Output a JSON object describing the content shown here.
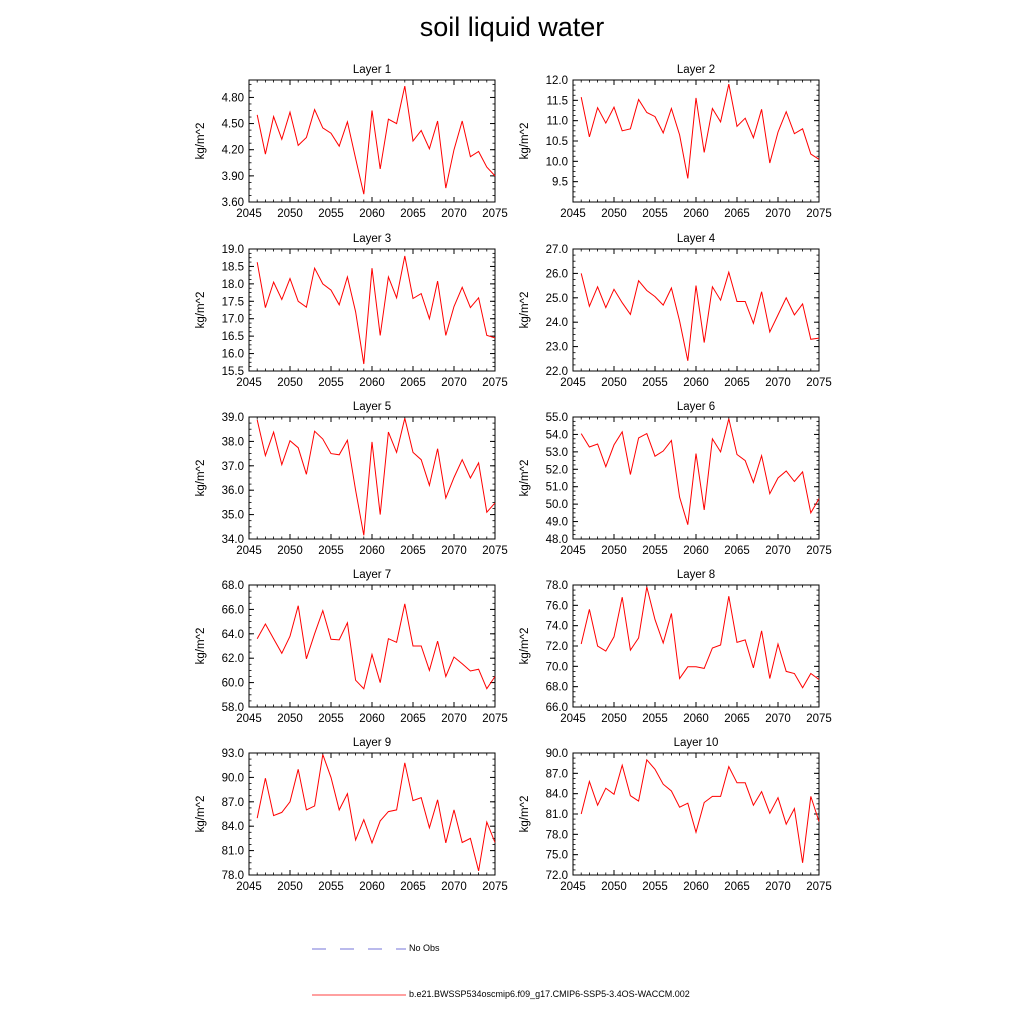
{
  "title": "soil liquid water",
  "colors": {
    "model": "#ff0000",
    "obs": "#4a4acc",
    "axis": "#000000"
  },
  "legend": {
    "obs_label": "No Obs",
    "model_label": "b.e21.BWSSP534oscmip6.f09_g17.CMIP6-SSP5-3.4OS-WACCM.002"
  },
  "chart_data": [
    {
      "type": "line",
      "title": "Layer 1",
      "xlabel": "",
      "ylabel": "kg/m^2",
      "xlim": [
        2045,
        2075
      ],
      "ylim": [
        3.6,
        5.0
      ],
      "xticks": [
        2045,
        2050,
        2055,
        2060,
        2065,
        2070,
        2075
      ],
      "xtick_labels": [
        "2045",
        "2050",
        "2055",
        "2060",
        "2065",
        "2070",
        "2075"
      ],
      "yticks": [
        3.6,
        3.9,
        4.2,
        4.5,
        4.8
      ],
      "ytick_labels": [
        "3.60",
        "3.90",
        "4.20",
        "4.50",
        "4.80"
      ],
      "x": [
        2046,
        2047,
        2048,
        2049,
        2050,
        2051,
        2052,
        2053,
        2054,
        2055,
        2056,
        2057,
        2058,
        2059,
        2060,
        2061,
        2062,
        2063,
        2064,
        2065,
        2066,
        2067,
        2068,
        2069,
        2070,
        2071,
        2072,
        2073,
        2074,
        2075
      ],
      "series": [
        {
          "values": [
            4.6,
            4.15,
            4.58,
            4.32,
            4.63,
            4.25,
            4.34,
            4.66,
            4.45,
            4.39,
            4.24,
            4.52,
            4.1,
            3.69,
            4.65,
            3.98,
            4.55,
            4.5,
            4.93,
            4.3,
            4.42,
            4.21,
            4.53,
            3.76,
            4.2,
            4.53,
            4.12,
            4.18,
            4.0,
            3.9
          ]
        }
      ]
    },
    {
      "type": "line",
      "title": "Layer 2",
      "xlabel": "",
      "ylabel": "kg/m^2",
      "xlim": [
        2045,
        2075
      ],
      "ylim": [
        9.0,
        12.0
      ],
      "xticks": [
        2045,
        2050,
        2055,
        2060,
        2065,
        2070,
        2075
      ],
      "xtick_labels": [
        "2045",
        "2050",
        "2055",
        "2060",
        "2065",
        "2070",
        "2075"
      ],
      "yticks": [
        9.5,
        10.0,
        10.5,
        11.0,
        11.5,
        12.0
      ],
      "ytick_labels": [
        "9.5",
        "10.0",
        "10.5",
        "11.0",
        "11.5",
        "12.0"
      ],
      "x": [
        2046,
        2047,
        2048,
        2049,
        2050,
        2051,
        2052,
        2053,
        2054,
        2055,
        2056,
        2057,
        2058,
        2059,
        2060,
        2061,
        2062,
        2063,
        2064,
        2065,
        2066,
        2067,
        2068,
        2069,
        2070,
        2071,
        2072,
        2073,
        2074,
        2075
      ],
      "series": [
        {
          "values": [
            11.58,
            10.6,
            11.32,
            10.94,
            11.33,
            10.75,
            10.8,
            11.52,
            11.2,
            11.1,
            10.7,
            11.3,
            10.65,
            9.58,
            11.56,
            10.22,
            11.3,
            10.97,
            11.9,
            10.86,
            11.06,
            10.58,
            11.28,
            9.96,
            10.72,
            11.22,
            10.68,
            10.8,
            10.18,
            10.05
          ]
        }
      ]
    },
    {
      "type": "line",
      "title": "Layer 3",
      "xlabel": "",
      "ylabel": "kg/m^2",
      "xlim": [
        2045,
        2075
      ],
      "ylim": [
        15.5,
        19.0
      ],
      "xticks": [
        2045,
        2050,
        2055,
        2060,
        2065,
        2070,
        2075
      ],
      "xtick_labels": [
        "2045",
        "2050",
        "2055",
        "2060",
        "2065",
        "2070",
        "2075"
      ],
      "yticks": [
        15.5,
        16.0,
        16.5,
        17.0,
        17.5,
        18.0,
        18.5,
        19.0
      ],
      "ytick_labels": [
        "15.5",
        "16.0",
        "16.5",
        "17.0",
        "17.5",
        "18.0",
        "18.5",
        "19.0"
      ],
      "x": [
        2046,
        2047,
        2048,
        2049,
        2050,
        2051,
        2052,
        2053,
        2054,
        2055,
        2056,
        2057,
        2058,
        2059,
        2060,
        2061,
        2062,
        2063,
        2064,
        2065,
        2066,
        2067,
        2068,
        2069,
        2070,
        2071,
        2072,
        2073,
        2074,
        2075
      ],
      "series": [
        {
          "values": [
            18.62,
            17.32,
            18.05,
            17.55,
            18.15,
            17.5,
            17.33,
            18.45,
            18.0,
            17.82,
            17.4,
            18.2,
            17.2,
            15.7,
            18.45,
            16.52,
            18.2,
            17.6,
            18.8,
            17.58,
            17.72,
            17.0,
            18.08,
            16.52,
            17.35,
            17.9,
            17.32,
            17.6,
            16.52,
            16.45
          ]
        }
      ]
    },
    {
      "type": "line",
      "title": "Layer 4",
      "xlabel": "",
      "ylabel": "kg/m^2",
      "xlim": [
        2045,
        2075
      ],
      "ylim": [
        22.0,
        27.0
      ],
      "xticks": [
        2045,
        2050,
        2055,
        2060,
        2065,
        2070,
        2075
      ],
      "xtick_labels": [
        "2045",
        "2050",
        "2055",
        "2060",
        "2065",
        "2070",
        "2075"
      ],
      "yticks": [
        22.0,
        23.0,
        24.0,
        25.0,
        26.0,
        27.0
      ],
      "ytick_labels": [
        "22.0",
        "23.0",
        "24.0",
        "25.0",
        "26.0",
        "27.0"
      ],
      "x": [
        2046,
        2047,
        2048,
        2049,
        2050,
        2051,
        2052,
        2053,
        2054,
        2055,
        2056,
        2057,
        2058,
        2059,
        2060,
        2061,
        2062,
        2063,
        2064,
        2065,
        2066,
        2067,
        2068,
        2069,
        2070,
        2071,
        2072,
        2073,
        2074,
        2075
      ],
      "series": [
        {
          "values": [
            26.0,
            24.65,
            25.45,
            24.6,
            25.35,
            24.8,
            24.32,
            25.7,
            25.3,
            25.05,
            24.7,
            25.4,
            24.05,
            22.42,
            25.5,
            23.17,
            25.45,
            24.9,
            26.05,
            24.85,
            24.85,
            23.95,
            25.25,
            23.6,
            24.3,
            25.0,
            24.3,
            24.75,
            23.3,
            23.35
          ]
        }
      ]
    },
    {
      "type": "line",
      "title": "Layer 5",
      "xlabel": "",
      "ylabel": "kg/m^2",
      "xlim": [
        2045,
        2075
      ],
      "ylim": [
        34.0,
        39.0
      ],
      "xticks": [
        2045,
        2050,
        2055,
        2060,
        2065,
        2070,
        2075
      ],
      "xtick_labels": [
        "2045",
        "2050",
        "2055",
        "2060",
        "2065",
        "2070",
        "2075"
      ],
      "yticks": [
        34.0,
        35.0,
        36.0,
        37.0,
        38.0,
        39.0
      ],
      "ytick_labels": [
        "34.0",
        "35.0",
        "36.0",
        "37.0",
        "38.0",
        "39.0"
      ],
      "x": [
        2046,
        2047,
        2048,
        2049,
        2050,
        2051,
        2052,
        2053,
        2054,
        2055,
        2056,
        2057,
        2058,
        2059,
        2060,
        2061,
        2062,
        2063,
        2064,
        2065,
        2066,
        2067,
        2068,
        2069,
        2070,
        2071,
        2072,
        2073,
        2074,
        2075
      ],
      "series": [
        {
          "values": [
            38.88,
            37.42,
            38.38,
            37.05,
            38.03,
            37.74,
            36.65,
            38.42,
            38.1,
            37.5,
            37.45,
            38.05,
            36.0,
            34.15,
            37.98,
            35.0,
            38.38,
            37.55,
            38.95,
            37.55,
            37.25,
            36.2,
            37.7,
            35.68,
            36.52,
            37.25,
            36.5,
            37.12,
            35.1,
            35.48
          ]
        }
      ]
    },
    {
      "type": "line",
      "title": "Layer 6",
      "xlabel": "",
      "ylabel": "kg/m^2",
      "xlim": [
        2045,
        2075
      ],
      "ylim": [
        48.0,
        55.0
      ],
      "xticks": [
        2045,
        2050,
        2055,
        2060,
        2065,
        2070,
        2075
      ],
      "xtick_labels": [
        "2045",
        "2050",
        "2055",
        "2060",
        "2065",
        "2070",
        "2075"
      ],
      "yticks": [
        48.0,
        49.0,
        50.0,
        51.0,
        52.0,
        53.0,
        54.0,
        55.0
      ],
      "ytick_labels": [
        "48.0",
        "49.0",
        "50.0",
        "51.0",
        "52.0",
        "53.0",
        "54.0",
        "55.0"
      ],
      "x": [
        2046,
        2047,
        2048,
        2049,
        2050,
        2051,
        2052,
        2053,
        2054,
        2055,
        2056,
        2057,
        2058,
        2059,
        2060,
        2061,
        2062,
        2063,
        2064,
        2065,
        2066,
        2067,
        2068,
        2069,
        2070,
        2071,
        2072,
        2073,
        2074,
        2075
      ],
      "series": [
        {
          "values": [
            54.05,
            53.28,
            53.45,
            52.15,
            53.4,
            54.15,
            51.7,
            53.8,
            54.05,
            52.75,
            53.05,
            53.65,
            50.4,
            48.82,
            52.9,
            49.67,
            53.75,
            53.0,
            54.9,
            52.85,
            52.5,
            51.25,
            52.78,
            50.6,
            51.5,
            51.9,
            51.3,
            51.85,
            49.5,
            50.32
          ]
        }
      ]
    },
    {
      "type": "line",
      "title": "Layer 7",
      "xlabel": "",
      "ylabel": "kg/m^2",
      "xlim": [
        2045,
        2075
      ],
      "ylim": [
        58.0,
        68.0
      ],
      "xticks": [
        2045,
        2050,
        2055,
        2060,
        2065,
        2070,
        2075
      ],
      "xtick_labels": [
        "2045",
        "2050",
        "2055",
        "2060",
        "2065",
        "2070",
        "2075"
      ],
      "yticks": [
        58.0,
        60.0,
        62.0,
        64.0,
        66.0,
        68.0
      ],
      "ytick_labels": [
        "58.0",
        "60.0",
        "62.0",
        "64.0",
        "66.0",
        "68.0"
      ],
      "x": [
        2046,
        2047,
        2048,
        2049,
        2050,
        2051,
        2052,
        2053,
        2054,
        2055,
        2056,
        2057,
        2058,
        2059,
        2060,
        2061,
        2062,
        2063,
        2064,
        2065,
        2066,
        2067,
        2068,
        2069,
        2070,
        2071,
        2072,
        2073,
        2074,
        2075
      ],
      "series": [
        {
          "values": [
            63.6,
            64.8,
            63.6,
            62.4,
            63.8,
            66.3,
            61.95,
            64.0,
            65.9,
            63.55,
            63.5,
            64.9,
            60.2,
            59.5,
            62.3,
            60.0,
            63.6,
            63.3,
            66.45,
            63.0,
            63.0,
            61.0,
            63.4,
            60.5,
            62.1,
            61.55,
            60.95,
            61.1,
            59.5,
            60.5
          ]
        }
      ]
    },
    {
      "type": "line",
      "title": "Layer 8",
      "xlabel": "",
      "ylabel": "kg/m^2",
      "xlim": [
        2045,
        2075
      ],
      "ylim": [
        66.0,
        78.0
      ],
      "xticks": [
        2045,
        2050,
        2055,
        2060,
        2065,
        2070,
        2075
      ],
      "xtick_labels": [
        "2045",
        "2050",
        "2055",
        "2060",
        "2065",
        "2070",
        "2075"
      ],
      "yticks": [
        66.0,
        68.0,
        70.0,
        72.0,
        74.0,
        76.0,
        78.0
      ],
      "ytick_labels": [
        "66.0",
        "68.0",
        "70.0",
        "72.0",
        "74.0",
        "76.0",
        "78.0"
      ],
      "x": [
        2046,
        2047,
        2048,
        2049,
        2050,
        2051,
        2052,
        2053,
        2054,
        2055,
        2056,
        2057,
        2058,
        2059,
        2060,
        2061,
        2062,
        2063,
        2064,
        2065,
        2066,
        2067,
        2068,
        2069,
        2070,
        2071,
        2072,
        2073,
        2074,
        2075
      ],
      "series": [
        {
          "values": [
            72.2,
            75.6,
            72.0,
            71.5,
            72.9,
            76.8,
            71.6,
            72.8,
            77.8,
            74.6,
            72.3,
            75.2,
            68.8,
            69.95,
            69.95,
            69.8,
            71.8,
            72.1,
            76.9,
            72.35,
            72.6,
            69.85,
            73.5,
            68.8,
            72.2,
            69.5,
            69.3,
            67.9,
            69.3,
            68.7
          ]
        }
      ]
    },
    {
      "type": "line",
      "title": "Layer 9",
      "xlabel": "",
      "ylabel": "kg/m^2",
      "xlim": [
        2045,
        2075
      ],
      "ylim": [
        78.0,
        93.0
      ],
      "xticks": [
        2045,
        2050,
        2055,
        2060,
        2065,
        2070,
        2075
      ],
      "xtick_labels": [
        "2045",
        "2050",
        "2055",
        "2060",
        "2065",
        "2070",
        "2075"
      ],
      "yticks": [
        78.0,
        81.0,
        84.0,
        87.0,
        90.0,
        93.0
      ],
      "ytick_labels": [
        "78.0",
        "81.0",
        "84.0",
        "87.0",
        "90.0",
        "93.0"
      ],
      "x": [
        2046,
        2047,
        2048,
        2049,
        2050,
        2051,
        2052,
        2053,
        2054,
        2055,
        2056,
        2057,
        2058,
        2059,
        2060,
        2061,
        2062,
        2063,
        2064,
        2065,
        2066,
        2067,
        2068,
        2069,
        2070,
        2071,
        2072,
        2073,
        2074,
        2075
      ],
      "series": [
        {
          "values": [
            85.0,
            89.9,
            85.3,
            85.7,
            87.0,
            91.0,
            86.0,
            86.5,
            92.8,
            90.0,
            86.0,
            88.0,
            82.3,
            84.8,
            81.95,
            84.65,
            85.8,
            86.0,
            91.8,
            87.15,
            87.5,
            83.8,
            87.25,
            81.95,
            86.0,
            82.0,
            82.5,
            78.5,
            84.5,
            82.0
          ]
        }
      ]
    },
    {
      "type": "line",
      "title": "Layer 10",
      "xlabel": "",
      "ylabel": "kg/m^2",
      "xlim": [
        2045,
        2075
      ],
      "ylim": [
        72.0,
        90.0
      ],
      "xticks": [
        2045,
        2050,
        2055,
        2060,
        2065,
        2070,
        2075
      ],
      "xtick_labels": [
        "2045",
        "2050",
        "2055",
        "2060",
        "2065",
        "2070",
        "2075"
      ],
      "yticks": [
        72.0,
        75.0,
        78.0,
        81.0,
        84.0,
        87.0,
        90.0
      ],
      "ytick_labels": [
        "72.0",
        "75.0",
        "78.0",
        "81.0",
        "84.0",
        "87.0",
        "90.0"
      ],
      "x": [
        2046,
        2047,
        2048,
        2049,
        2050,
        2051,
        2052,
        2053,
        2054,
        2055,
        2056,
        2057,
        2058,
        2059,
        2060,
        2061,
        2062,
        2063,
        2064,
        2065,
        2066,
        2067,
        2068,
        2069,
        2070,
        2071,
        2072,
        2073,
        2074,
        2075
      ],
      "series": [
        {
          "values": [
            81.0,
            85.8,
            82.3,
            84.8,
            83.9,
            88.2,
            83.7,
            82.9,
            89.0,
            87.6,
            85.4,
            84.4,
            82.0,
            82.6,
            78.3,
            82.7,
            83.6,
            83.6,
            88.0,
            85.6,
            85.6,
            82.3,
            84.3,
            81.1,
            83.4,
            79.5,
            81.8,
            73.8,
            83.6,
            79.9
          ]
        }
      ]
    }
  ]
}
